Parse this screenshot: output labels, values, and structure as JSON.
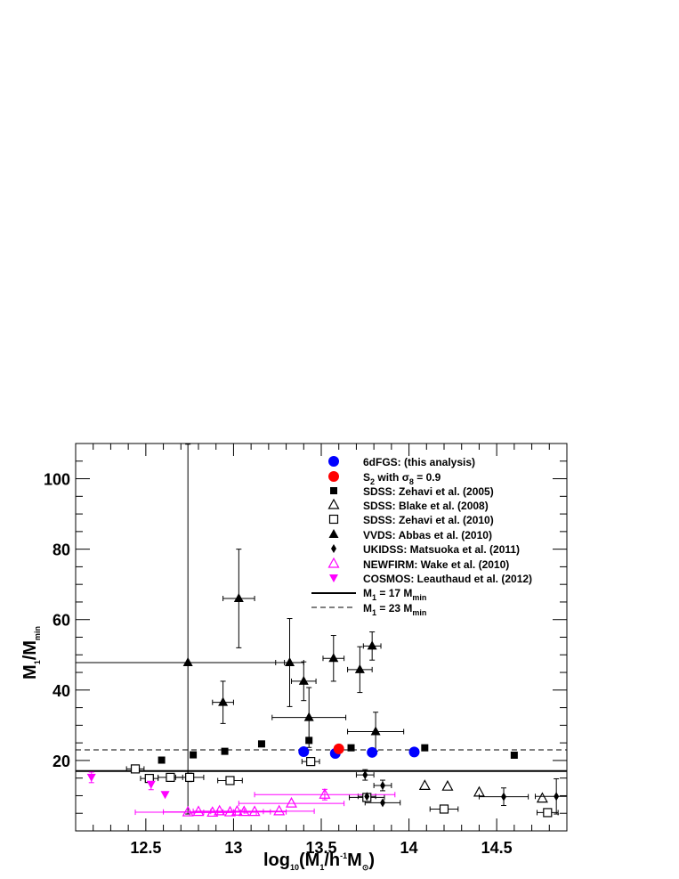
{
  "chart_data": {
    "type": "scatter",
    "xlim": [
      12.1,
      14.9
    ],
    "ylim": [
      0,
      110
    ],
    "xticks": [
      12.5,
      13,
      13.5,
      14,
      14.5
    ],
    "xtick_labels": [
      "12.5",
      "13",
      "13.5",
      "14",
      "14.5"
    ],
    "yticks": [
      20,
      40,
      60,
      80,
      100
    ],
    "ytick_labels": [
      "20",
      "40",
      "60",
      "80",
      "100"
    ],
    "xlabel": {
      "main": "log",
      "sub1": "10",
      "mid": "(M",
      "sub2": "1",
      "tail": "/h",
      "sup": "-1",
      "end": "M",
      "sym": "⊙",
      "close": ")"
    },
    "ylabel": {
      "main": "M",
      "sub1": "1",
      "mid": "/M",
      "sub2": "min"
    },
    "grid": false,
    "legend_position": "top-right",
    "reference_lines": [
      {
        "name": "M_1 = 17 M_min",
        "label_main": "M",
        "label_sub": "1",
        "label_mid": " = 17 M",
        "label_sub2": "min",
        "y": 17,
        "style": "solid"
      },
      {
        "name": "M_1 = 23 M_min",
        "label_main": "M",
        "label_sub": "1",
        "label_mid": " = 23 M",
        "label_sub2": "min",
        "y": 23,
        "style": "dashed"
      }
    ],
    "series": [
      {
        "name": "6dFGS: (this analysis)",
        "marker": "circle",
        "color": "#0000ff",
        "points": [
          {
            "x": 13.4,
            "y": 22.5
          },
          {
            "x": 13.58,
            "y": 22
          },
          {
            "x": 13.79,
            "y": 22.3
          },
          {
            "x": 14.03,
            "y": 22.4
          }
        ]
      },
      {
        "name": "S_2 with sigma_8 = 0.9",
        "label_pre": "S",
        "label_sub": "2",
        "label_mid": " with ",
        "label_sigma": "σ",
        "label_sub2": "8",
        "label_tail": " = 0.9",
        "marker": "circle",
        "color": "#ff0000",
        "points": [
          {
            "x": 13.6,
            "y": 23.3
          }
        ]
      },
      {
        "name": "SDSS: Zehavi et al. (2005)",
        "marker": "square-filled",
        "color": "#000000",
        "points": [
          {
            "x": 12.59,
            "y": 20.1
          },
          {
            "x": 12.77,
            "y": 21.6
          },
          {
            "x": 12.95,
            "y": 22.6
          },
          {
            "x": 13.16,
            "y": 24.7
          },
          {
            "x": 13.43,
            "y": 25.7
          },
          {
            "x": 13.67,
            "y": 23.6
          },
          {
            "x": 14.09,
            "y": 23.6
          },
          {
            "x": 14.6,
            "y": 21.5
          }
        ]
      },
      {
        "name": "SDSS: Blake et al. (2008)",
        "marker": "triangle-open",
        "color": "#000000",
        "points": [
          {
            "x": 14.09,
            "y": 12.8
          },
          {
            "x": 14.22,
            "y": 12.6
          },
          {
            "x": 14.4,
            "y": 10.9
          },
          {
            "x": 14.76,
            "y": 9.2
          }
        ]
      },
      {
        "name": "SDSS: Zehavi et al. (2010)",
        "marker": "square-open",
        "color": "#000000",
        "points": [
          {
            "x": 12.44,
            "y": 17.6,
            "xerr": 0.05
          },
          {
            "x": 12.52,
            "y": 14.9,
            "xerr": 0.05
          },
          {
            "x": 12.64,
            "y": 15.2,
            "xerr": 0.07
          },
          {
            "x": 12.75,
            "y": 15.2,
            "xerr": 0.08,
            "yerr": 1.2
          },
          {
            "x": 12.98,
            "y": 14.3,
            "xerr": 0.07
          },
          {
            "x": 13.44,
            "y": 19.7,
            "xerr": 0.05,
            "yerr": 1
          },
          {
            "x": 13.76,
            "y": 9.5,
            "xerr": 0.1,
            "yerr": 1
          },
          {
            "x": 14.2,
            "y": 6.2,
            "xerr": 0.08
          },
          {
            "x": 14.79,
            "y": 5.2,
            "xerr": 0.06
          }
        ]
      },
      {
        "name": "VVDS: Abbas et al. (2010)",
        "marker": "triangle-filled",
        "color": "#000000",
        "points": [
          {
            "x": 12.74,
            "y": 47.8,
            "xerr_lo": 0.64,
            "xerr_hi": 0.55,
            "yerr_lo": 43,
            "yerr_hi": 62
          },
          {
            "x": 12.94,
            "y": 36.5,
            "xerr": 0.06,
            "yerr": 6
          },
          {
            "x": 13.03,
            "y": 66,
            "xerr": 0.09,
            "yerr": 14
          },
          {
            "x": 13.32,
            "y": 47.8,
            "xerr": 0.08,
            "yerr_lo": 12.5,
            "yerr_hi": 12.5
          },
          {
            "x": 13.4,
            "y": 42.5,
            "xerr": 0.07,
            "yerr": 5.5
          },
          {
            "x": 13.43,
            "y": 32.2,
            "xerr": 0.21,
            "yerr": 8.5
          },
          {
            "x": 13.57,
            "y": 49,
            "xerr": 0.06,
            "yerr": 6.5
          },
          {
            "x": 13.72,
            "y": 45.8,
            "xerr": 0.07,
            "yerr": 6.5
          },
          {
            "x": 13.79,
            "y": 52.5,
            "xerr": 0.05,
            "yerr": 4
          },
          {
            "x": 13.81,
            "y": 28.2,
            "xerr": 0.16,
            "yerr": 5.5
          }
        ]
      },
      {
        "name": "UKIDSS: Matsuoka et al. (2011)",
        "marker": "diamond-filled",
        "color": "#000000",
        "points": [
          {
            "x": 13.75,
            "y": 15.9,
            "xerr": 0.05,
            "yerr": 1.5
          },
          {
            "x": 13.76,
            "y": 9.8,
            "xerr": 0.05
          },
          {
            "x": 13.85,
            "y": 12.9,
            "xerr": 0.05,
            "yerr": 1.5
          },
          {
            "x": 13.85,
            "y": 8,
            "xerr": 0.1
          },
          {
            "x": 14.54,
            "y": 9.7,
            "xerr": 0.14,
            "yerr": 2.5
          },
          {
            "x": 14.84,
            "y": 9.8,
            "xerr": 0.12,
            "yerr": 5
          }
        ]
      },
      {
        "name": "NEWFIRM: Wake et al. (2010)",
        "marker": "triangle-open",
        "color": "#ff00ff",
        "points": [
          {
            "x": 12.74,
            "y": 5.3,
            "xerr": 0.3
          },
          {
            "x": 12.8,
            "y": 5.4,
            "xerr": 0.2
          },
          {
            "x": 12.88,
            "y": 5.2,
            "xerr": 0.13
          },
          {
            "x": 12.92,
            "y": 5.6,
            "xerr": 0.15
          },
          {
            "x": 12.98,
            "y": 5.3,
            "xerr": 0.15
          },
          {
            "x": 13.02,
            "y": 5.5,
            "xerr": 0.15
          },
          {
            "x": 13.06,
            "y": 5.4,
            "xerr": 0.15
          },
          {
            "x": 13.12,
            "y": 5.4,
            "xerr": 0.18
          },
          {
            "x": 13.26,
            "y": 5.6,
            "xerr": 0.2
          },
          {
            "x": 13.33,
            "y": 7.8,
            "xerr": 0.3
          },
          {
            "x": 13.52,
            "y": 10.3,
            "xerr": 0.4,
            "yerr": 1.5
          }
        ]
      },
      {
        "name": "COSMOS: Leauthaud et al. (2012)",
        "marker": "triangle-down-filled",
        "color": "#ff00ff",
        "points": [
          {
            "x": 12.19,
            "y": 15.2,
            "yerr": 1.5
          },
          {
            "x": 12.53,
            "y": 13.2,
            "yerr": 1.5
          },
          {
            "x": 12.61,
            "y": 10.3
          }
        ]
      }
    ]
  }
}
